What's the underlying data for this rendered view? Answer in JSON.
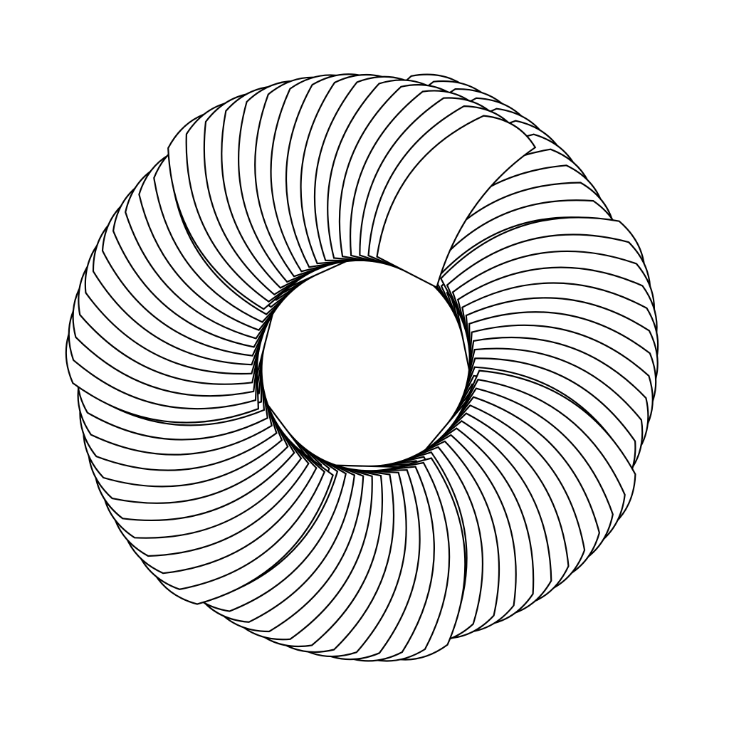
{
  "artwork": {
    "description_name": "spiral-ring-of-curved-fins",
    "colors": {
      "background": "#ffffff",
      "stroke": "#000000",
      "fill": "#ffffff"
    },
    "pattern": {
      "arms": 7,
      "fins_per_arm": 16,
      "rotation_direction": "clockwise"
    }
  }
}
